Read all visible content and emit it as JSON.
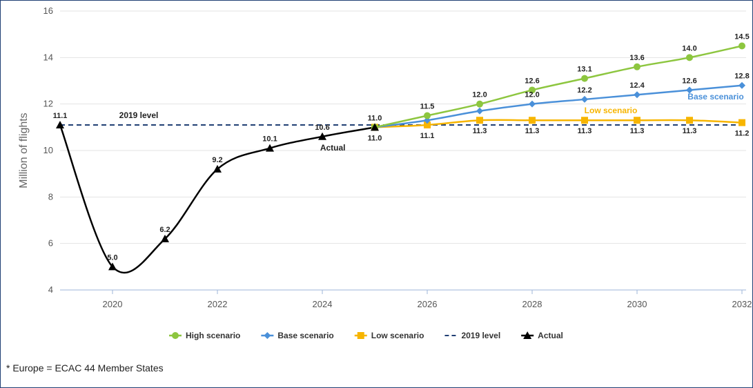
{
  "chart_data": {
    "type": "line",
    "title": "",
    "xlabel": "",
    "ylabel": "Million of flights",
    "xlim": [
      2019,
      2032
    ],
    "ylim": [
      4,
      16
    ],
    "x_ticks": [
      2020,
      2022,
      2024,
      2026,
      2028,
      2030,
      2032
    ],
    "y_ticks": [
      4,
      6,
      8,
      10,
      12,
      14,
      16
    ],
    "grid": "horizontal",
    "legend_position": "bottom",
    "series": [
      {
        "name": "High scenario",
        "color": "#8dc63f",
        "marker": "circle",
        "x": [
          2025,
          2026,
          2027,
          2028,
          2029,
          2030,
          2031,
          2032
        ],
        "values": [
          11.0,
          11.5,
          12.0,
          12.6,
          13.1,
          13.6,
          14.0,
          14.5
        ]
      },
      {
        "name": "Base scenario",
        "color": "#4a90d9",
        "marker": "diamond",
        "x": [
          2025,
          2026,
          2027,
          2028,
          2029,
          2030,
          2031,
          2032
        ],
        "values": [
          11.0,
          11.3,
          11.7,
          12.0,
          12.2,
          12.4,
          12.6,
          12.8
        ]
      },
      {
        "name": "Low scenario",
        "color": "#f7b500",
        "marker": "square",
        "x": [
          2025,
          2026,
          2027,
          2028,
          2029,
          2030,
          2031,
          2032
        ],
        "values": [
          11.0,
          11.1,
          11.3,
          11.3,
          11.3,
          11.3,
          11.3,
          11.2
        ]
      },
      {
        "name": "2019 level",
        "color": "#1f3e73",
        "dashed": true,
        "x": [
          2019,
          2032
        ],
        "values": [
          11.1,
          11.1
        ]
      },
      {
        "name": "Actual",
        "color": "#000000",
        "marker": "triangle",
        "x": [
          2019,
          2020,
          2021,
          2022,
          2023,
          2024,
          2025
        ],
        "values": [
          11.1,
          5.0,
          6.2,
          9.2,
          10.1,
          10.6,
          11.0
        ]
      }
    ],
    "data_labels": [
      {
        "x": 2019,
        "y": 11.1,
        "text": "11.1",
        "pos": "above"
      },
      {
        "x": 2020,
        "y": 5.0,
        "text": "5.0",
        "pos": "above"
      },
      {
        "x": 2021,
        "y": 6.2,
        "text": "6.2",
        "pos": "above"
      },
      {
        "x": 2022,
        "y": 9.2,
        "text": "9.2",
        "pos": "above"
      },
      {
        "x": 2023,
        "y": 10.1,
        "text": "10.1",
        "pos": "above"
      },
      {
        "x": 2024,
        "y": 10.6,
        "text": "10.6",
        "pos": "above"
      },
      {
        "x": 2025,
        "y": 11.0,
        "text": "11.0",
        "pos": "above"
      },
      {
        "x": 2025,
        "y": 11.0,
        "text": "11.0",
        "pos": "below"
      },
      {
        "x": 2026,
        "y": 11.5,
        "text": "11.5",
        "pos": "above"
      },
      {
        "x": 2027,
        "y": 12.0,
        "text": "12.0",
        "pos": "above"
      },
      {
        "x": 2028,
        "y": 12.6,
        "text": "12.6",
        "pos": "above"
      },
      {
        "x": 2029,
        "y": 13.1,
        "text": "13.1",
        "pos": "above"
      },
      {
        "x": 2030,
        "y": 13.6,
        "text": "13.6",
        "pos": "above"
      },
      {
        "x": 2031,
        "y": 14.0,
        "text": "14.0",
        "pos": "above"
      },
      {
        "x": 2032,
        "y": 14.5,
        "text": "14.5",
        "pos": "above"
      },
      {
        "x": 2028,
        "y": 12.0,
        "text": "12.0",
        "pos": "above"
      },
      {
        "x": 2029,
        "y": 12.2,
        "text": "12.2",
        "pos": "above"
      },
      {
        "x": 2030,
        "y": 12.4,
        "text": "12.4",
        "pos": "above"
      },
      {
        "x": 2031,
        "y": 12.6,
        "text": "12.6",
        "pos": "above"
      },
      {
        "x": 2032,
        "y": 12.8,
        "text": "12.8",
        "pos": "above"
      },
      {
        "x": 2026,
        "y": 11.1,
        "text": "11.1",
        "pos": "below"
      },
      {
        "x": 2027,
        "y": 11.3,
        "text": "11.3",
        "pos": "below"
      },
      {
        "x": 2028,
        "y": 11.3,
        "text": "11.3",
        "pos": "below"
      },
      {
        "x": 2029,
        "y": 11.3,
        "text": "11.3",
        "pos": "below"
      },
      {
        "x": 2030,
        "y": 11.3,
        "text": "11.3",
        "pos": "below"
      },
      {
        "x": 2031,
        "y": 11.3,
        "text": "11.3",
        "pos": "below"
      },
      {
        "x": 2032,
        "y": 11.2,
        "text": "11.2",
        "pos": "below"
      }
    ],
    "annotations": [
      {
        "text": "2019 level",
        "x": 2020.5,
        "y": 11.1,
        "color": "#222222"
      },
      {
        "text": "Actual",
        "x": 2024.2,
        "y": 10.6,
        "color": "#222222"
      },
      {
        "text": "Low scenario",
        "x": 2029.5,
        "y": 11.6,
        "color": "#f7b500"
      },
      {
        "text": "Base scenario",
        "x": 2031.5,
        "y": 12.2,
        "color": "#4a90d9"
      }
    ]
  },
  "footnote": "* Europe = ECAC 44 Member States"
}
